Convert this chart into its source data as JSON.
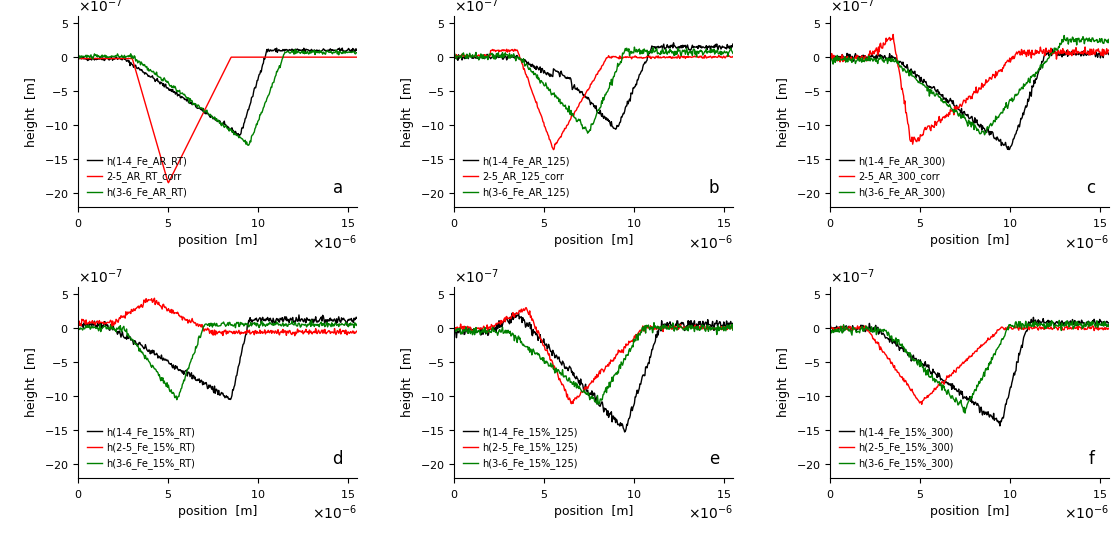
{
  "subplots": [
    {
      "label": "a",
      "legend": [
        "h(1-4_Fe_AR_RT)",
        "2-5_AR_RT_corr",
        "h(3-6_Fe_AR_RT)"
      ],
      "colors": [
        "black",
        "red",
        "green"
      ]
    },
    {
      "label": "b",
      "legend": [
        "h(1-4_Fe_AR_125)",
        "2-5_AR_125_corr",
        "h(3-6_Fe_AR_125)"
      ],
      "colors": [
        "black",
        "red",
        "green"
      ]
    },
    {
      "label": "c",
      "legend": [
        "h(1-4_Fe_AR_300)",
        "2-5_AR_300_corr",
        "h(3-6_Fe_AR_300)"
      ],
      "colors": [
        "black",
        "red",
        "green"
      ]
    },
    {
      "label": "d",
      "legend": [
        "h(1-4_Fe_15%_RT)",
        "h(2-5_Fe_15%_RT)",
        "h(3-6_Fe_15%_RT)"
      ],
      "colors": [
        "black",
        "red",
        "green"
      ]
    },
    {
      "label": "e",
      "legend": [
        "h(1-4_Fe_15%_125)",
        "h(2-5_Fe_15%_125)",
        "h(3-6_Fe_15%_125)"
      ],
      "colors": [
        "black",
        "red",
        "green"
      ]
    },
    {
      "label": "f",
      "legend": [
        "h(1-4_Fe_15%_300)",
        "h(2-5_Fe_15%_300)",
        "h(3-6_Fe_15%_300)"
      ],
      "colors": [
        "black",
        "red",
        "green"
      ]
    }
  ],
  "xlim": [
    0,
    1.55e-05
  ],
  "ylim": [
    -2.2e-06,
    6e-07
  ],
  "xlabel": "position  [m]",
  "ylabel": "height  [m]"
}
